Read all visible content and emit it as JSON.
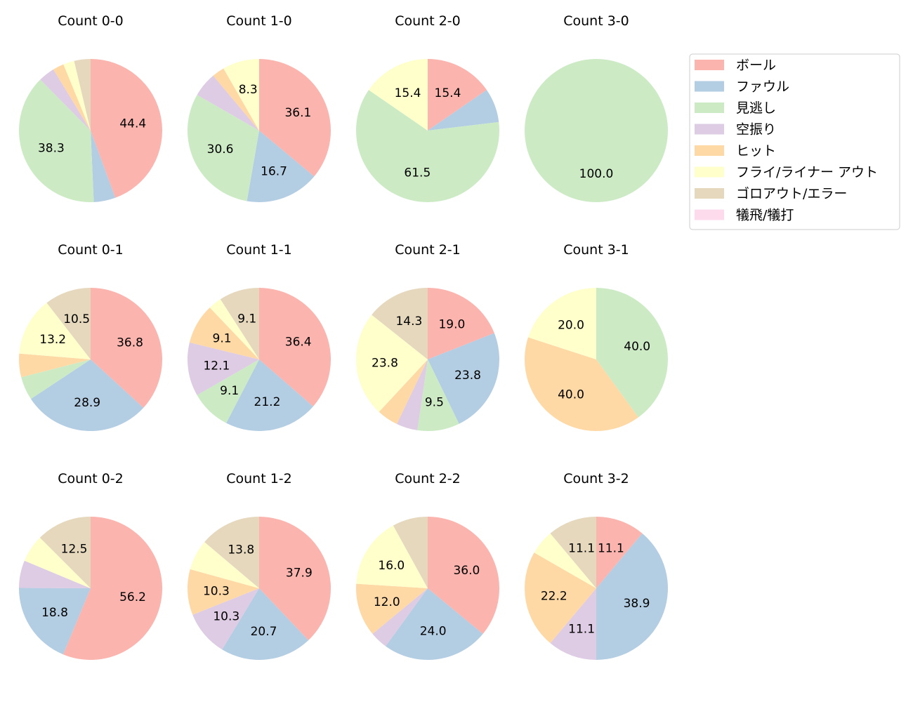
{
  "chart_data": {
    "type": "pie",
    "categories": [
      "ボール",
      "ファウル",
      "見逃し",
      "空振り",
      "ヒット",
      "フライ/ライナー アウト",
      "ゴロアウト/エラー",
      "犠飛/犠打"
    ],
    "colors": [
      "#fbb4ae",
      "#b3cde3",
      "#ccebc5",
      "#decbe4",
      "#fed9a6",
      "#ffffcc",
      "#e5d8bd",
      "#fddaec"
    ],
    "legend_position": "top-right",
    "start": "top, clockwise",
    "label_format": "percent, 1 decimal, shown for larger slices",
    "pies": [
      {
        "title": "Count 0-0",
        "values": [
          44.4,
          4.9,
          38.3,
          3.7,
          2.5,
          2.5,
          3.7,
          0
        ]
      },
      {
        "title": "Count 1-0",
        "values": [
          36.1,
          16.7,
          30.6,
          5.6,
          2.8,
          8.3,
          0,
          0
        ]
      },
      {
        "title": "Count 2-0",
        "values": [
          15.4,
          7.7,
          61.5,
          0,
          0,
          15.4,
          0,
          0
        ]
      },
      {
        "title": "Count 3-0",
        "values": [
          0,
          0,
          100.0,
          0,
          0,
          0,
          0,
          0
        ]
      },
      {
        "title": "Count 0-1",
        "values": [
          36.8,
          28.9,
          5.3,
          0,
          5.3,
          13.2,
          10.5,
          0
        ]
      },
      {
        "title": "Count 1-1",
        "values": [
          36.4,
          21.2,
          9.1,
          12.1,
          9.1,
          3.0,
          9.1,
          0
        ]
      },
      {
        "title": "Count 2-1",
        "values": [
          19.0,
          23.8,
          9.5,
          4.8,
          4.8,
          23.8,
          14.3,
          0
        ]
      },
      {
        "title": "Count 3-1",
        "values": [
          0,
          0,
          40.0,
          0,
          40.0,
          20.0,
          0,
          0
        ]
      },
      {
        "title": "Count 0-2",
        "values": [
          56.2,
          18.8,
          0,
          6.2,
          0,
          6.2,
          12.5,
          0
        ]
      },
      {
        "title": "Count 1-2",
        "values": [
          37.9,
          20.7,
          0,
          10.3,
          10.3,
          6.9,
          13.8,
          0
        ]
      },
      {
        "title": "Count 2-2",
        "values": [
          36.0,
          24.0,
          0,
          4.0,
          12.0,
          16.0,
          8.0,
          0
        ]
      },
      {
        "title": "Count 3-2",
        "values": [
          11.1,
          38.9,
          0,
          11.1,
          22.2,
          5.6,
          11.1,
          0
        ]
      }
    ]
  }
}
